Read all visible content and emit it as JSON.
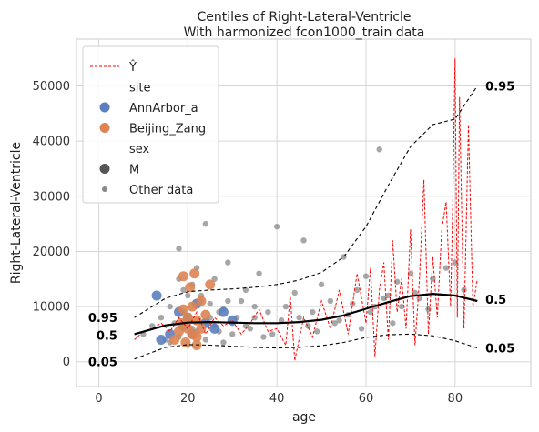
{
  "chart_data": {
    "type": "scatter",
    "title": "Centiles of Right-Lateral-Ventricle",
    "subtitle": "With harmonized fcon1000_train data",
    "xlabel": "age",
    "ylabel": "Right-Lateral-Ventricle",
    "xlim": [
      -5,
      97
    ],
    "ylim": [
      -4500,
      58500
    ],
    "x_ticks": [
      0,
      20,
      40,
      60,
      80
    ],
    "y_ticks": [
      0,
      10000,
      20000,
      30000,
      40000,
      50000
    ],
    "grid": true,
    "legend_placement": "top-left",
    "legend": [
      {
        "kind": "line",
        "label": "Ŷ",
        "color": "#ff0000"
      },
      {
        "kind": "header",
        "label": "site"
      },
      {
        "kind": "dot",
        "label": "AnnArbor_a",
        "color": "#5b7fbf"
      },
      {
        "kind": "dot",
        "label": "Beijing_Zang",
        "color": "#dd8452"
      },
      {
        "kind": "header",
        "label": "sex"
      },
      {
        "kind": "dot",
        "label": "M",
        "color": "#555555"
      },
      {
        "kind": "small-dot",
        "label": "Other data",
        "color": "#8a8a8a"
      }
    ],
    "centile_labels": {
      "left": [
        {
          "label": "0.95",
          "x": 5,
          "y": 8000
        },
        {
          "label": "0.5",
          "x": 5,
          "y": 4800
        },
        {
          "label": "0.05",
          "x": 5,
          "y": 0
        }
      ],
      "right": [
        {
          "label": "0.95",
          "x": 86,
          "y": 50000
        },
        {
          "label": "0.5",
          "x": 86,
          "y": 11300
        },
        {
          "label": "0.05",
          "x": 86,
          "y": 2500
        }
      ]
    },
    "centiles": [
      {
        "name": "0.95",
        "style": "dashed",
        "color": "#000000",
        "x": [
          8,
          15,
          20,
          25,
          30,
          35,
          40,
          45,
          50,
          55,
          60,
          65,
          70,
          75,
          80,
          85
        ],
        "y": [
          8000,
          11500,
          12700,
          13000,
          13200,
          13500,
          14000,
          14800,
          16200,
          19000,
          24500,
          32000,
          39000,
          43000,
          44000,
          50000
        ]
      },
      {
        "name": "0.5",
        "style": "solid",
        "color": "#000000",
        "x": [
          8,
          15,
          20,
          25,
          30,
          35,
          40,
          45,
          50,
          55,
          60,
          65,
          70,
          75,
          80,
          85
        ],
        "y": [
          5000,
          6600,
          7100,
          7200,
          7100,
          7000,
          7000,
          7200,
          7600,
          8400,
          9600,
          10800,
          11900,
          12300,
          12000,
          11000
        ]
      },
      {
        "name": "0.05",
        "style": "dashed",
        "color": "#000000",
        "x": [
          8,
          15,
          20,
          25,
          30,
          35,
          40,
          45,
          50,
          55,
          60,
          65,
          70,
          75,
          80,
          85
        ],
        "y": [
          500,
          2600,
          3100,
          3000,
          2800,
          2600,
          2500,
          2600,
          2900,
          3500,
          4400,
          4900,
          5000,
          4700,
          3800,
          2500
        ]
      }
    ],
    "prediction_series": {
      "name": "Ŷ",
      "color": "#ff0000",
      "style": "dashed",
      "x": [
        8,
        10,
        12,
        14,
        16,
        18,
        20,
        22,
        24,
        26,
        28,
        30,
        32,
        34,
        36,
        38,
        40,
        42,
        43,
        44,
        46,
        48,
        50,
        52,
        54,
        56,
        58,
        60,
        61,
        62,
        63,
        64,
        65,
        66,
        67,
        68,
        69,
        70,
        71,
        72,
        73,
        74,
        75,
        76,
        77,
        78,
        79,
        79.5,
        80,
        80.5,
        81,
        82,
        83,
        84,
        85
      ],
      "y": [
        4000,
        5500,
        6000,
        7000,
        5500,
        8000,
        6000,
        9000,
        5000,
        8000,
        6500,
        7500,
        5000,
        7000,
        9500,
        5500,
        6000,
        3000,
        12000,
        200,
        8000,
        4500,
        11000,
        6000,
        13000,
        5000,
        16000,
        7000,
        17000,
        1000,
        13000,
        18000,
        4000,
        22000,
        9000,
        15000,
        6000,
        24000,
        3000,
        15000,
        33000,
        5000,
        19000,
        8000,
        24000,
        29000,
        10000,
        30000,
        55000,
        8000,
        48000,
        6000,
        43000,
        10000,
        15000
      ]
    },
    "series": [
      {
        "name": "AnnArbor_a",
        "color": "#5b7fbf",
        "x": [
          13,
          14,
          16,
          18,
          19,
          20,
          21,
          22,
          24,
          26,
          28,
          30
        ],
        "y": [
          12000,
          4000,
          5000,
          9000,
          6500,
          8000,
          5000,
          10500,
          7000,
          6000,
          9000,
          7500
        ]
      },
      {
        "name": "Beijing_Zang",
        "color": "#dd8452",
        "x": [
          17,
          18,
          18.5,
          19,
          19.5,
          20,
          20,
          20.5,
          21,
          21,
          21.5,
          22,
          22,
          23,
          23,
          24,
          25,
          19,
          22
        ],
        "y": [
          4000,
          5500,
          7000,
          9500,
          3500,
          6000,
          8000,
          13500,
          5000,
          10000,
          16000,
          4500,
          7500,
          6000,
          11000,
          8500,
          14000,
          15500,
          3000
        ]
      },
      {
        "name": "Other data",
        "color": "#8a8a8a",
        "x": [
          10,
          12,
          14,
          15,
          16,
          17,
          18,
          19,
          20,
          21,
          22,
          23,
          24,
          25,
          26,
          27,
          28,
          29,
          30,
          32,
          33,
          34,
          35,
          36,
          38,
          39,
          40,
          41,
          42,
          44,
          46,
          47,
          48,
          50,
          52,
          53,
          55,
          56,
          58,
          60,
          62,
          63,
          65,
          67,
          70,
          72,
          75,
          78,
          80,
          82,
          16,
          18,
          20,
          22,
          24,
          26,
          28,
          30,
          18,
          19,
          21,
          23,
          25,
          27,
          29,
          31,
          33,
          35,
          37,
          45,
          49,
          54,
          57,
          59,
          61,
          64,
          66,
          68,
          71,
          74
        ],
        "y": [
          5000,
          6500,
          8000,
          4000,
          10000,
          7000,
          20500,
          9000,
          12000,
          6000,
          17000,
          11000,
          25000,
          8000,
          15000,
          5500,
          9500,
          18000,
          7000,
          11000,
          13000,
          6000,
          8000,
          16000,
          9000,
          5000,
          24500,
          7500,
          10000,
          12500,
          22000,
          6500,
          9000,
          14000,
          11000,
          7000,
          19000,
          8500,
          13000,
          15500,
          10000,
          38500,
          12000,
          14500,
          16000,
          11500,
          15000,
          17000,
          18000,
          13000,
          3500,
          4500,
          3000,
          5500,
          4000,
          6500,
          3500,
          5000,
          15000,
          13000,
          14000,
          12000,
          10500,
          9000,
          11000,
          8000,
          6500,
          10000,
          4500,
          8000,
          5500,
          7500,
          10500,
          6000,
          9000,
          11500,
          7000,
          10000,
          12500,
          9500
        ]
      }
    ]
  }
}
